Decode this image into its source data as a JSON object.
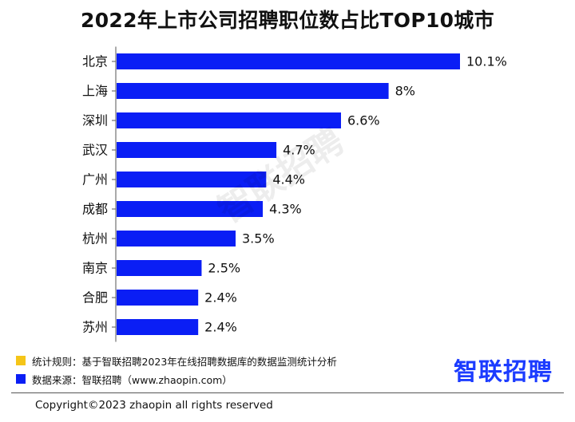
{
  "chart_data": {
    "type": "bar",
    "orientation": "horizontal",
    "title": "2022年上市公司招聘职位数占比TOP10城市",
    "categories": [
      "北京",
      "上海",
      "深圳",
      "武汉",
      "广州",
      "成都",
      "杭州",
      "南京",
      "合肥",
      "苏州"
    ],
    "values": [
      10.1,
      8,
      6.6,
      4.7,
      4.4,
      4.3,
      3.5,
      2.5,
      2.4,
      2.4
    ],
    "value_labels": [
      "10.1%",
      "8%",
      "6.6%",
      "4.7%",
      "4.4%",
      "4.3%",
      "3.5%",
      "2.5%",
      "2.4%",
      "2.4%"
    ],
    "bar_color": "#0a1ef5",
    "grid": false,
    "legend": "bottom-left"
  },
  "watermark": "智联招聘",
  "legend": {
    "rule": {
      "label": "统计规则：基于智联招聘2023年在线招聘数据库的数据监测统计分析",
      "color": "#f5c518"
    },
    "source": {
      "label": "数据来源：智联招聘（www.zhaopin.com）",
      "color": "#0a1ef5"
    }
  },
  "brand": "智联招聘",
  "copyright": "Copyright©2023 zhaopin all rights reserved"
}
